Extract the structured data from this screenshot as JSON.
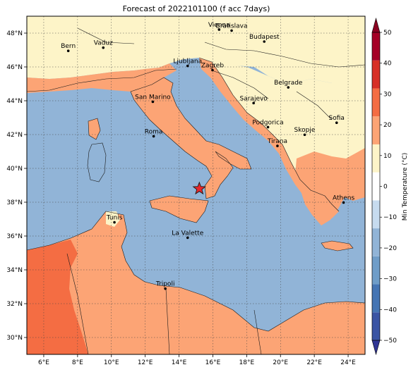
{
  "title": "Forecast of 2022101100 (f acc 7days)",
  "map": {
    "lon_range": [
      5,
      25
    ],
    "lat_range": [
      29,
      49
    ],
    "x_ticks": [
      "6°E",
      "8°E",
      "10°E",
      "12°E",
      "14°E",
      "16°E",
      "18°E",
      "20°E",
      "22°E",
      "24°E"
    ],
    "y_ticks": [
      "30°N",
      "32°N",
      "34°N",
      "36°N",
      "38°N",
      "40°N",
      "42°N",
      "44°N",
      "46°N",
      "48°N"
    ],
    "grid": "dotted",
    "sea_color": "#91b4d7",
    "land_colors": {
      "cool": "#fdf4c8",
      "mild": "#fca475",
      "warm": "#f46d43"
    }
  },
  "cities": [
    {
      "name": "Bern",
      "lon": 7.45,
      "lat": 46.95
    },
    {
      "name": "Vaduz",
      "lon": 9.52,
      "lat": 47.14
    },
    {
      "name": "Vienna",
      "lon": 16.37,
      "lat": 48.21
    },
    {
      "name": "Bratislava",
      "lon": 17.11,
      "lat": 48.15
    },
    {
      "name": "Budapest",
      "lon": 19.04,
      "lat": 47.5
    },
    {
      "name": "Ljubljana",
      "lon": 14.51,
      "lat": 46.06
    },
    {
      "name": "Zagreb",
      "lon": 15.98,
      "lat": 45.81
    },
    {
      "name": "Belgrade",
      "lon": 20.46,
      "lat": 44.79
    },
    {
      "name": "San Marino",
      "lon": 12.45,
      "lat": 43.94
    },
    {
      "name": "Sarajevo",
      "lon": 18.41,
      "lat": 43.86
    },
    {
      "name": "Sofia",
      "lon": 23.32,
      "lat": 42.7
    },
    {
      "name": "Roma",
      "lon": 12.5,
      "lat": 41.9
    },
    {
      "name": "Podgorica",
      "lon": 19.26,
      "lat": 42.44
    },
    {
      "name": "Skopje",
      "lon": 21.43,
      "lat": 41.99
    },
    {
      "name": "Tirana",
      "lon": 19.82,
      "lat": 41.33
    },
    {
      "name": "Athens",
      "lon": 23.73,
      "lat": 37.98
    },
    {
      "name": "Tunis",
      "lon": 10.18,
      "lat": 36.81
    },
    {
      "name": "La Valette",
      "lon": 14.51,
      "lat": 35.9
    },
    {
      "name": "Tripoli",
      "lon": 13.19,
      "lat": 32.89
    }
  ],
  "marker": {
    "type": "star",
    "lon": 15.2,
    "lat": 38.8,
    "color": "#e8262a"
  },
  "colorbar": {
    "label": "Min Temperature (°C)",
    "ticks": [
      "50",
      "40",
      "30",
      "20",
      "10",
      "0",
      "−10",
      "−20",
      "−30",
      "−40",
      "−50"
    ],
    "range": [
      -50,
      50
    ],
    "extend": "both",
    "colors": [
      "#313695",
      "#3a54a4",
      "#4575b4",
      "#6f9dc8",
      "#91b4d7",
      "#c6dbef",
      "#ffffff",
      "#fdf4c8",
      "#fca475",
      "#f46d43",
      "#d73027",
      "#a50026",
      "#8b0021"
    ]
  }
}
